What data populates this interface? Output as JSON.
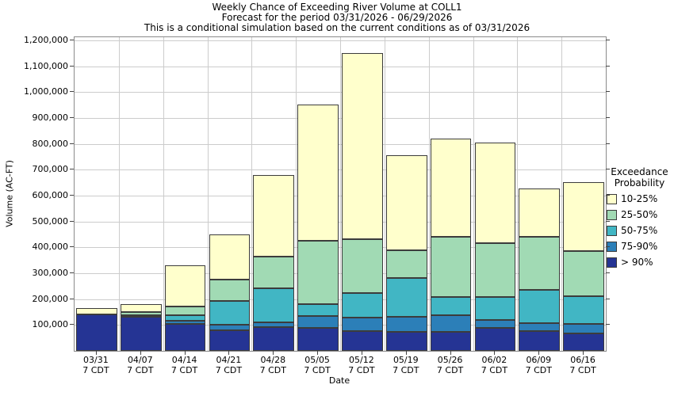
{
  "title": {
    "line1": "Weekly Chance of Exceeding River Volume at COLL1",
    "line2": "Forecast for the period 03/31/2026 - 06/29/2026",
    "line3": "This is a conditional simulation based on the current conditions as of 03/31/2026"
  },
  "y_axis": {
    "label": "Volume (AC-FT)",
    "tick_min": 100000,
    "tick_max": 1200000,
    "tick_step": 100000
  },
  "x_axis": {
    "label": "Date"
  },
  "legend": {
    "title_line1": "Exceedance",
    "title_line2": "Probability"
  },
  "chart_data": {
    "type": "bar",
    "stacked": true,
    "title": "Weekly Chance of Exceeding River Volume at COLL1",
    "xlabel": "Date",
    "ylabel": "Volume (AC-FT)",
    "ylim": [
      0,
      1212000
    ],
    "grid": true,
    "legend_position": "right",
    "categories": [
      "03/31",
      "04/07",
      "04/14",
      "04/21",
      "04/28",
      "05/05",
      "05/12",
      "05/19",
      "05/26",
      "06/02",
      "06/09",
      "06/16"
    ],
    "category_sublabel": "7 CDT",
    "series": [
      {
        "name": "> 90%",
        "color": "#253494",
        "values": [
          140000,
          130000,
          105000,
          80000,
          93000,
          90000,
          76000,
          73000,
          73000,
          88000,
          76000,
          67000
        ]
      },
      {
        "name": "75-90%",
        "color": "#2C7FB8",
        "values": [
          0,
          0,
          12000,
          20000,
          16000,
          44000,
          53000,
          57000,
          64000,
          30000,
          32000,
          36000
        ]
      },
      {
        "name": "50-75%",
        "color": "#41B6C4",
        "values": [
          0,
          8000,
          22000,
          92000,
          132000,
          46000,
          94000,
          152000,
          70000,
          89000,
          126000,
          107000
        ]
      },
      {
        "name": "25-50%",
        "color": "#A1DAB4",
        "values": [
          0,
          12000,
          31000,
          83000,
          124000,
          245000,
          207000,
          107000,
          235000,
          210000,
          208000,
          177000
        ]
      },
      {
        "name": "10-25%",
        "color": "#FFFFCC",
        "values": [
          25000,
          32000,
          160000,
          175000,
          316000,
          526000,
          721000,
          366000,
          378000,
          389000,
          185000,
          264000
        ]
      }
    ],
    "bar_totals": [
      165000,
      182000,
      330000,
      450000,
      681000,
      951000,
      1151000,
      755000,
      820000,
      806000,
      627000,
      651000
    ]
  },
  "colors": {
    "gridline": "#cccccc",
    "plot_border": "#8a8a8a",
    "bar_border": "#3c3c3c",
    "background": "#ffffff"
  }
}
